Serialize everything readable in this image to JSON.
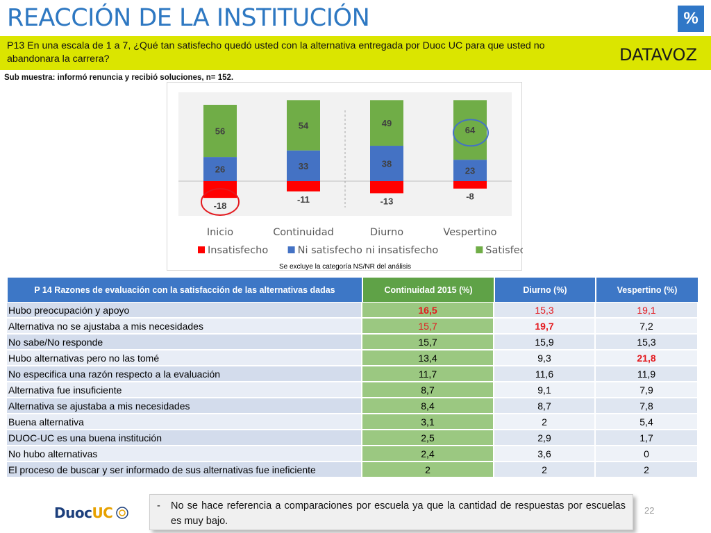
{
  "title": "REACCIÓN DE LA INSTITUCIÓN",
  "badge": "%",
  "question": "P13 En una escala de 1 a 7, ¿Qué tan satisfecho quedó usted con la alternativa entregada por Duoc UC para que usted no abandonara la carrera?",
  "logo_text": "DATAVOZ",
  "submuestra": "Sub muestra: informó renuncia y recibió soluciones, n= 152.",
  "chart_data": {
    "type": "bar",
    "stacked": true,
    "categories": [
      "Inicio",
      "Continuidad",
      "Diurno",
      "Vespertino"
    ],
    "series": [
      {
        "name": "Insatisfecho",
        "values": [
          -18,
          -11,
          -13,
          -8
        ],
        "color": "#ff0000"
      },
      {
        "name": "Ni satisfecho ni insatisfecho",
        "values": [
          26,
          33,
          38,
          23
        ],
        "color": "#4472c4"
      },
      {
        "name": "Satisfecho",
        "values": [
          56,
          54,
          49,
          64
        ],
        "color": "#70ad47"
      }
    ],
    "legend_position": "bottom",
    "note": "Se excluye la categoría NS/NR del análisis",
    "highlighted": [
      "Inicio: Insatisfecho",
      "Vespertino: Satisfecho"
    ]
  },
  "table": {
    "headers": [
      "P 14 Razones de evaluación con la satisfacción de las alternativas dadas",
      "Continuidad 2015 (%)",
      "Diurno (%)",
      "Vespertino (%)"
    ],
    "rows": [
      {
        "label": "Hubo preocupación y apoyo",
        "values": [
          "16,5",
          "15,3",
          "19,1"
        ]
      },
      {
        "label": "Alternativa no se ajustaba a mis necesidades",
        "values": [
          "15,7",
          "19,7",
          "7,2"
        ]
      },
      {
        "label": "No sabe/No responde",
        "values": [
          "15,7",
          "15,9",
          "15,3"
        ]
      },
      {
        "label": "Hubo alternativas pero no las tomé",
        "values": [
          "13,4",
          "9,3",
          "21,8"
        ]
      },
      {
        "label": "No especifica una razón respecto a la evaluación",
        "values": [
          "11,7",
          "11,6",
          "11,9"
        ]
      },
      {
        "label": "Alternativa fue insuficiente",
        "values": [
          "8,7",
          "9,1",
          "7,9"
        ]
      },
      {
        "label": "Alternativa se ajustaba a mis necesidades",
        "values": [
          "8,4",
          "8,7",
          "7,8"
        ]
      },
      {
        "label": "Buena alternativa",
        "values": [
          "3,1",
          "2",
          "5,4"
        ]
      },
      {
        "label": "DUOC-UC es una buena institución",
        "values": [
          "2,5",
          "2,9",
          "1,7"
        ]
      },
      {
        "label": "No hubo alternativas",
        "values": [
          "2,4",
          "3,6",
          "0"
        ]
      },
      {
        "label": "El proceso de buscar y ser informado de sus alternativas fue ineficiente",
        "values": [
          "2",
          "2",
          "2"
        ]
      }
    ],
    "emphasis": [
      {
        "row": 0,
        "col": 0,
        "style": "red-big"
      },
      {
        "row": 0,
        "col": 1,
        "style": "red"
      },
      {
        "row": 0,
        "col": 2,
        "style": "red"
      },
      {
        "row": 1,
        "col": 0,
        "style": "red"
      },
      {
        "row": 1,
        "col": 1,
        "style": "red-big"
      },
      {
        "row": 3,
        "col": 2,
        "style": "red-big"
      }
    ]
  },
  "note": "No se hace referencia a comparaciones por escuela ya que la cantidad de respuestas por escuelas es muy bajo.",
  "page_number": "22",
  "footer_logo": {
    "duoc": "Duoc",
    "uc": "UC"
  }
}
